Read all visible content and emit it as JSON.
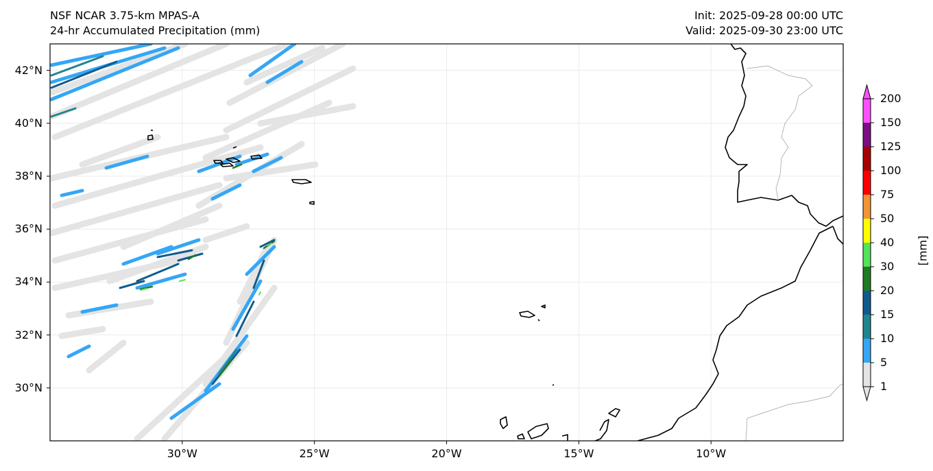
{
  "title_left": {
    "line1": "NSF NCAR 3.75-km MPAS-A",
    "line2": "24-hr Accumulated Precipitation (mm)"
  },
  "title_right": {
    "line1": "Init: 2025-09-28 00:00 UTC",
    "line2": "Valid: 2025-09-30 23:00 UTC"
  },
  "map": {
    "lon_range": [
      -35,
      -5
    ],
    "lat_range": [
      28,
      43
    ],
    "lat_ticks": [
      "42°N",
      "40°N",
      "38°N",
      "36°N",
      "34°N",
      "32°N",
      "30°N"
    ],
    "lon_ticks": [
      "30°W",
      "25°W",
      "20°W",
      "15°W",
      "10°W"
    ],
    "lat_values": [
      42,
      40,
      38,
      36,
      34,
      32,
      30
    ],
    "lon_values": [
      -30,
      -25,
      -20,
      -15,
      -10
    ]
  },
  "colorbar": {
    "label": "[mm]",
    "levels": [
      "1",
      "5",
      "10",
      "15",
      "20",
      "30",
      "40",
      "50",
      "75",
      "100",
      "125",
      "150",
      "200"
    ],
    "colors": [
      "#e4e4e4",
      "#35a6f5",
      "#21858f",
      "#105b8d",
      "#217b25",
      "#55e35a",
      "#ffff00",
      "#f29436",
      "#ff0000",
      "#a80000",
      "#7c0e82",
      "#fd4ffd"
    ]
  }
}
